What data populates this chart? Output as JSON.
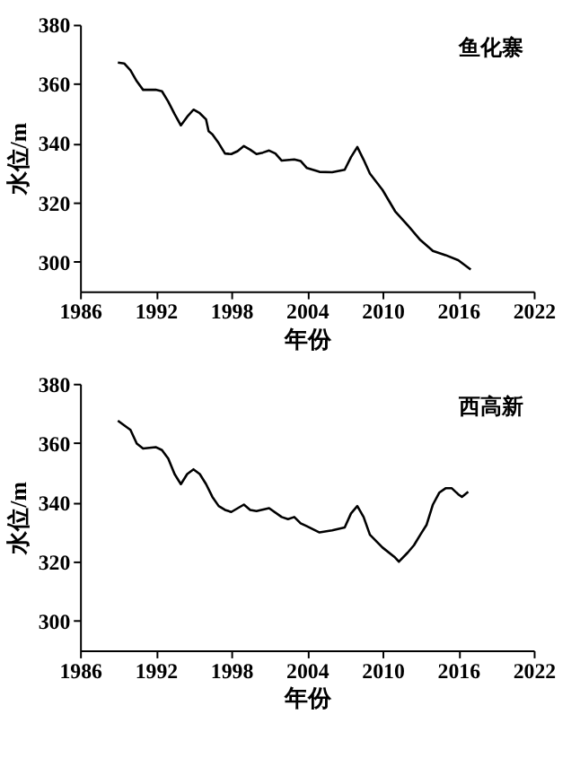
{
  "chart_data": [
    {
      "type": "line",
      "title": "鱼化寨",
      "xlabel": "年份",
      "ylabel": "水位/m",
      "xlim": [
        1986,
        2022
      ],
      "xticks": [
        1986,
        1992,
        1998,
        2004,
        2010,
        2016,
        2022
      ],
      "ylim": [
        290,
        380
      ],
      "yticks": [
        300,
        320,
        340,
        360,
        380
      ],
      "grid": false,
      "marker": "none",
      "line_style": "solid",
      "series": [
        {
          "color": "#000000",
          "x": [
            1989,
            1989.5,
            1990,
            1990.5,
            1991,
            1992,
            1992.5,
            1993,
            1993.5,
            1994,
            1994.5,
            1995,
            1995.5,
            1996,
            1996.2,
            1996.5,
            1997,
            1997.5,
            1998,
            1998.5,
            1999,
            1999.5,
            2000,
            2000.5,
            2001,
            2001.5,
            2002,
            2003,
            2003.5,
            2004,
            2005,
            2006,
            2007,
            2007.5,
            2008,
            2008.5,
            2009,
            2010,
            2011,
            2012,
            2013,
            2014,
            2015,
            2016,
            2017
          ],
          "values": [
            367.2,
            366.9,
            364.6,
            360.9,
            358,
            358,
            357.5,
            354,
            349.8,
            346,
            348.9,
            351.3,
            350.1,
            348,
            344,
            343,
            340,
            336.5,
            336.3,
            337.3,
            339,
            337.8,
            336.3,
            336.8,
            337.5,
            336.5,
            334.1,
            334.5,
            334,
            331.6,
            330.3,
            330.2,
            331,
            335.3,
            338.7,
            334.4,
            329.7,
            324.2,
            317,
            312.3,
            307.3,
            303.6,
            302.2,
            300.5,
            297.3
          ]
        }
      ]
    },
    {
      "type": "line",
      "title": "西高新",
      "xlabel": "年份",
      "ylabel": "水位/m",
      "xlim": [
        1986,
        2022
      ],
      "xticks": [
        1986,
        1992,
        1998,
        2004,
        2010,
        2016,
        2022
      ],
      "ylim": [
        290,
        380
      ],
      "yticks": [
        300,
        320,
        340,
        360,
        380
      ],
      "grid": false,
      "marker": "none",
      "line_style": "solid",
      "series": [
        {
          "color": "#000000",
          "x": [
            1989,
            1990,
            1990.5,
            1991,
            1992,
            1992.5,
            1993,
            1993.5,
            1994,
            1994.5,
            1995,
            1995.5,
            1996,
            1996.5,
            1997,
            1997.5,
            1998,
            1999,
            1999.5,
            2000,
            2001,
            2002,
            2002.5,
            2003,
            2003.5,
            2004,
            2005,
            2006,
            2007,
            2007.5,
            2008,
            2008.5,
            2009,
            2010,
            2011,
            2011.3,
            2012,
            2012.5,
            2013,
            2013.5,
            2014,
            2014.5,
            2015,
            2015.5,
            2016,
            2016.3,
            2016.8
          ],
          "values": [
            367.5,
            364.4,
            359.8,
            358.1,
            358.6,
            357.6,
            354.7,
            349.5,
            346.1,
            349.5,
            351.1,
            349.5,
            346.1,
            341.8,
            338.7,
            337.4,
            336.7,
            339.2,
            337.4,
            337,
            338,
            335,
            334.3,
            335,
            332.9,
            331.9,
            329.8,
            330.5,
            331.5,
            336.2,
            338.7,
            335,
            329,
            324.7,
            321.3,
            319.9,
            323,
            325.5,
            329,
            332.4,
            339.2,
            343.2,
            344.7,
            344.7,
            342.7,
            341.8,
            343.5
          ]
        }
      ]
    }
  ]
}
